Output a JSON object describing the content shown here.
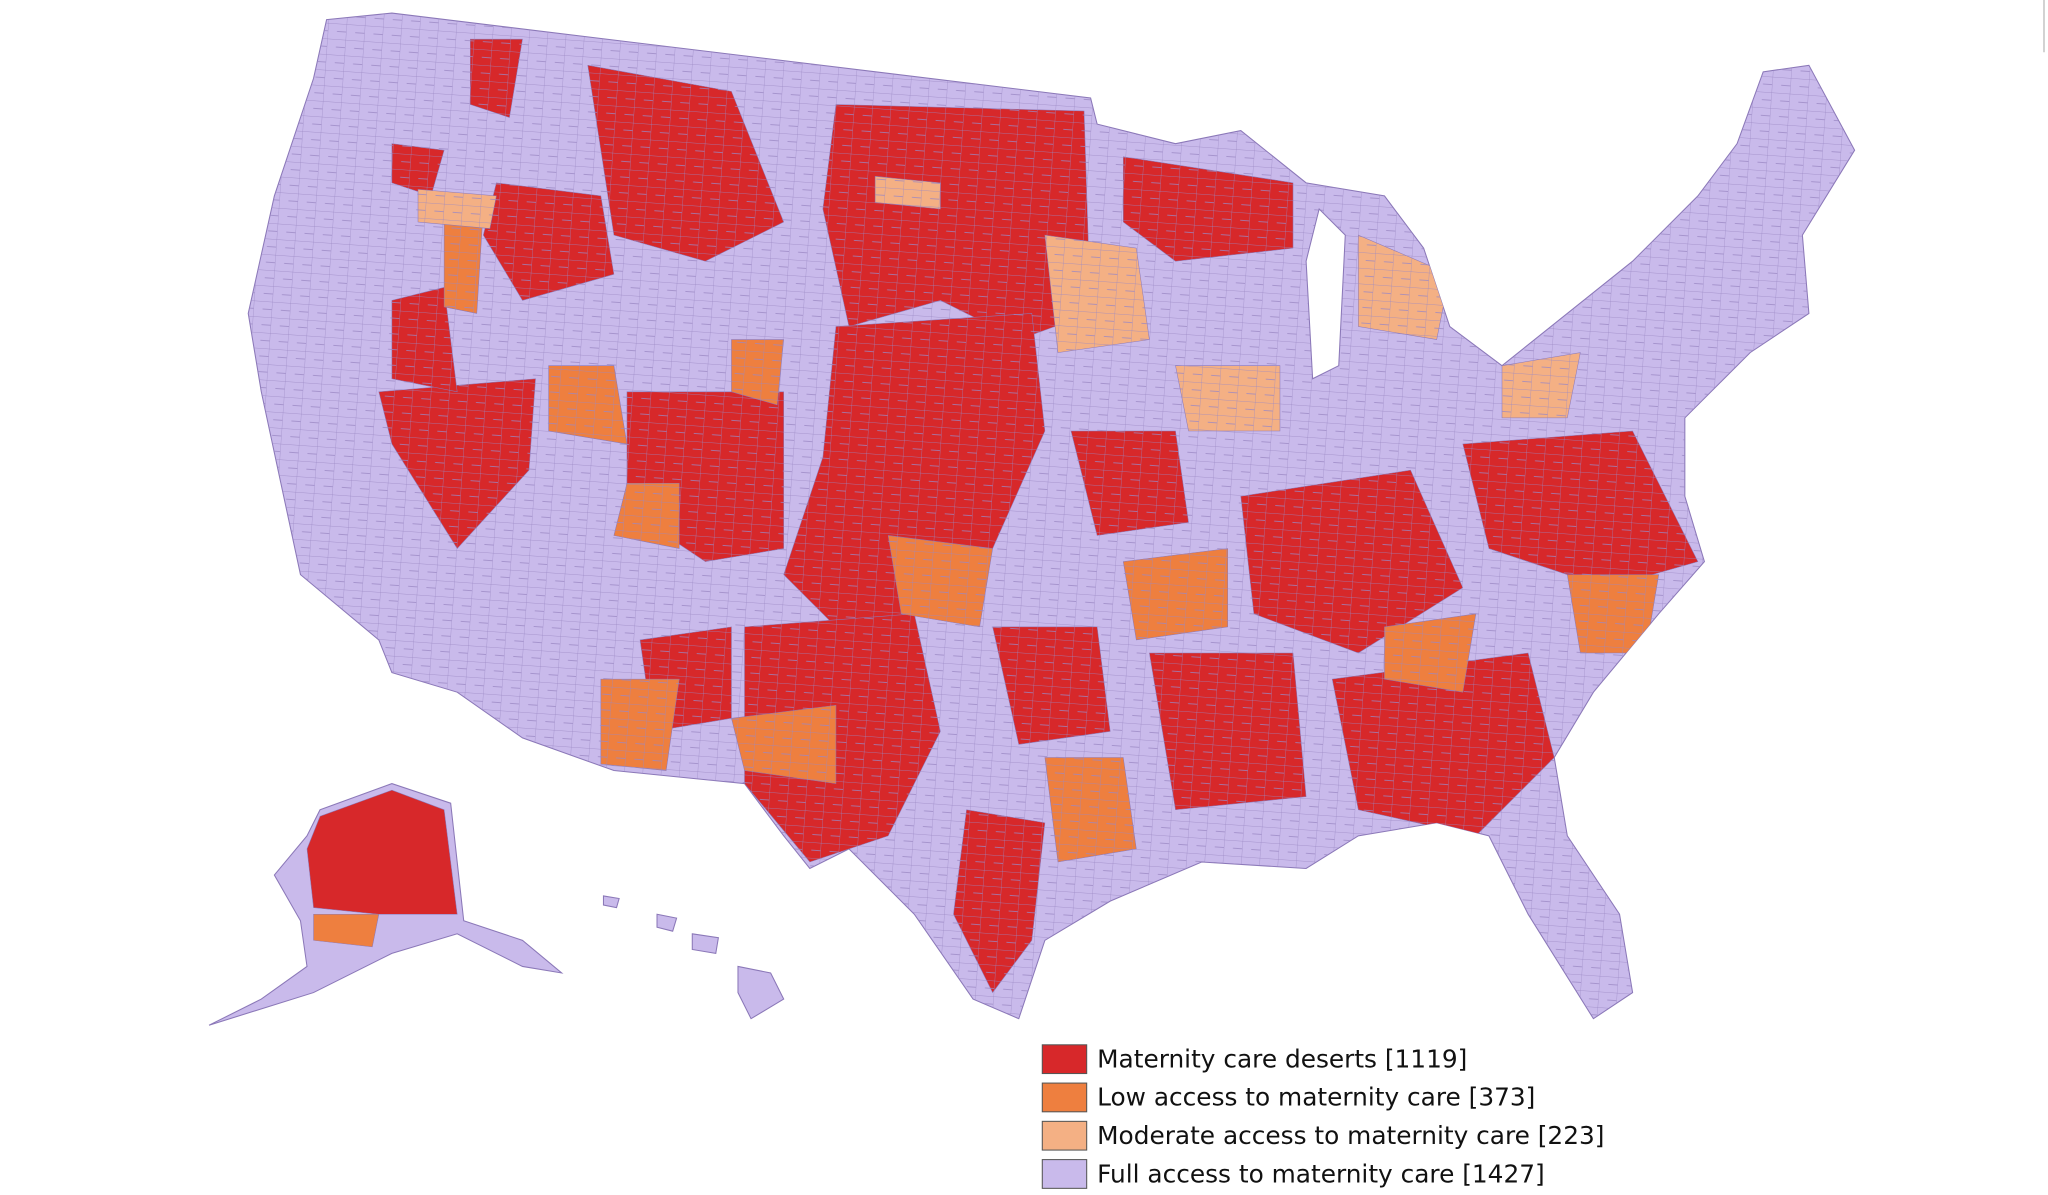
{
  "legend": {
    "items": [
      {
        "label": "Maternity care deserts [1119]",
        "color": "#d7282a"
      },
      {
        "label": "Low access to maternity care [373]",
        "color": "#ee7f3f"
      },
      {
        "label": "Moderate access to maternity care [223]",
        "color": "#f4b084"
      },
      {
        "label": "Full access to maternity care [1427]",
        "color": "#c9baeb"
      }
    ]
  }
}
